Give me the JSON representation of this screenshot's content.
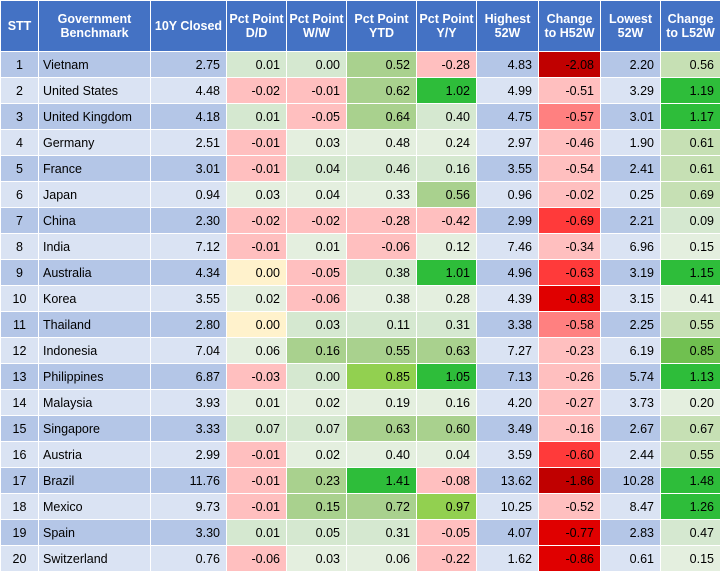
{
  "headers": [
    "STT",
    "Government Benchmark",
    "10Y Closed",
    "Pct Point D/D",
    "Pct Point W/W",
    "Pct Point YTD",
    "Pct Point Y/Y",
    "Highest 52W",
    "Change to H52W",
    "Lowest 52W",
    "Change to L52W"
  ],
  "rows": [
    {
      "stt": "1",
      "name": "Vietnam",
      "closed": "2.75",
      "dd": "0.01",
      "ww": "0.00",
      "ytd": "0.52",
      "yy": "-0.28",
      "h52": "4.83",
      "ch52": "-2.08",
      "l52": "2.20",
      "cl52": "0.56"
    },
    {
      "stt": "2",
      "name": "United States",
      "closed": "4.48",
      "dd": "-0.02",
      "ww": "-0.01",
      "ytd": "0.62",
      "yy": "1.02",
      "h52": "4.99",
      "ch52": "-0.51",
      "l52": "3.29",
      "cl52": "1.19"
    },
    {
      "stt": "3",
      "name": "United Kingdom",
      "closed": "4.18",
      "dd": "0.01",
      "ww": "-0.05",
      "ytd": "0.64",
      "yy": "0.40",
      "h52": "4.75",
      "ch52": "-0.57",
      "l52": "3.01",
      "cl52": "1.17"
    },
    {
      "stt": "4",
      "name": "Germany",
      "closed": "2.51",
      "dd": "-0.01",
      "ww": "0.03",
      "ytd": "0.48",
      "yy": "0.24",
      "h52": "2.97",
      "ch52": "-0.46",
      "l52": "1.90",
      "cl52": "0.61"
    },
    {
      "stt": "5",
      "name": "France",
      "closed": "3.01",
      "dd": "-0.01",
      "ww": "0.04",
      "ytd": "0.46",
      "yy": "0.16",
      "h52": "3.55",
      "ch52": "-0.54",
      "l52": "2.41",
      "cl52": "0.61"
    },
    {
      "stt": "6",
      "name": "Japan",
      "closed": "0.94",
      "dd": "0.03",
      "ww": "0.04",
      "ytd": "0.33",
      "yy": "0.56",
      "h52": "0.96",
      "ch52": "-0.02",
      "l52": "0.25",
      "cl52": "0.69"
    },
    {
      "stt": "7",
      "name": "China",
      "closed": "2.30",
      "dd": "-0.02",
      "ww": "-0.02",
      "ytd": "-0.28",
      "yy": "-0.42",
      "h52": "2.99",
      "ch52": "-0.69",
      "l52": "2.21",
      "cl52": "0.09"
    },
    {
      "stt": "8",
      "name": "India",
      "closed": "7.12",
      "dd": "-0.01",
      "ww": "0.01",
      "ytd": "-0.06",
      "yy": "0.12",
      "h52": "7.46",
      "ch52": "-0.34",
      "l52": "6.96",
      "cl52": "0.15"
    },
    {
      "stt": "9",
      "name": "Australia",
      "closed": "4.34",
      "dd": "0.00",
      "ww": "-0.05",
      "ytd": "0.38",
      "yy": "1.01",
      "h52": "4.96",
      "ch52": "-0.63",
      "l52": "3.19",
      "cl52": "1.15"
    },
    {
      "stt": "10",
      "name": "Korea",
      "closed": "3.55",
      "dd": "0.02",
      "ww": "-0.06",
      "ytd": "0.38",
      "yy": "0.28",
      "h52": "4.39",
      "ch52": "-0.83",
      "l52": "3.15",
      "cl52": "0.41"
    },
    {
      "stt": "11",
      "name": "Thailand",
      "closed": "2.80",
      "dd": "0.00",
      "ww": "0.03",
      "ytd": "0.11",
      "yy": "0.31",
      "h52": "3.38",
      "ch52": "-0.58",
      "l52": "2.25",
      "cl52": "0.55"
    },
    {
      "stt": "12",
      "name": "Indonesia",
      "closed": "7.04",
      "dd": "0.06",
      "ww": "0.16",
      "ytd": "0.55",
      "yy": "0.63",
      "h52": "7.27",
      "ch52": "-0.23",
      "l52": "6.19",
      "cl52": "0.85"
    },
    {
      "stt": "13",
      "name": "Philippines",
      "closed": "6.87",
      "dd": "-0.03",
      "ww": "0.00",
      "ytd": "0.85",
      "yy": "1.05",
      "h52": "7.13",
      "ch52": "-0.26",
      "l52": "5.74",
      "cl52": "1.13"
    },
    {
      "stt": "14",
      "name": "Malaysia",
      "closed": "3.93",
      "dd": "0.01",
      "ww": "0.02",
      "ytd": "0.19",
      "yy": "0.16",
      "h52": "4.20",
      "ch52": "-0.27",
      "l52": "3.73",
      "cl52": "0.20"
    },
    {
      "stt": "15",
      "name": "Singapore",
      "closed": "3.33",
      "dd": "0.07",
      "ww": "0.07",
      "ytd": "0.63",
      "yy": "0.60",
      "h52": "3.49",
      "ch52": "-0.16",
      "l52": "2.67",
      "cl52": "0.67"
    },
    {
      "stt": "16",
      "name": "Austria",
      "closed": "2.99",
      "dd": "-0.01",
      "ww": "0.02",
      "ytd": "0.40",
      "yy": "0.04",
      "h52": "3.59",
      "ch52": "-0.60",
      "l52": "2.44",
      "cl52": "0.55"
    },
    {
      "stt": "17",
      "name": "Brazil",
      "closed": "11.76",
      "dd": "-0.01",
      "ww": "0.23",
      "ytd": "1.41",
      "yy": "-0.08",
      "h52": "13.62",
      "ch52": "-1.86",
      "l52": "10.28",
      "cl52": "1.48"
    },
    {
      "stt": "18",
      "name": "Mexico",
      "closed": "9.73",
      "dd": "-0.01",
      "ww": "0.15",
      "ytd": "0.72",
      "yy": "0.97",
      "h52": "10.25",
      "ch52": "-0.52",
      "l52": "8.47",
      "cl52": "1.26"
    },
    {
      "stt": "19",
      "name": "Spain",
      "closed": "3.30",
      "dd": "0.01",
      "ww": "0.05",
      "ytd": "0.31",
      "yy": "-0.05",
      "h52": "4.07",
      "ch52": "-0.77",
      "l52": "2.83",
      "cl52": "0.47"
    },
    {
      "stt": "20",
      "name": "Switzerland",
      "closed": "0.76",
      "dd": "-0.06",
      "ww": "0.03",
      "ytd": "0.06",
      "yy": "-0.22",
      "h52": "1.62",
      "ch52": "-0.86",
      "l52": "0.61",
      "cl52": "0.15"
    }
  ],
  "colors": {
    "header_bg": "#4472c4",
    "row_odd": "#b4c6e7",
    "row_even": "#dae3f3",
    "negative_light": "#ffbfbf",
    "negative_strong": "#c00000",
    "positive_light": "#c6e0b4",
    "positive_strong": "#2ebd3a"
  }
}
